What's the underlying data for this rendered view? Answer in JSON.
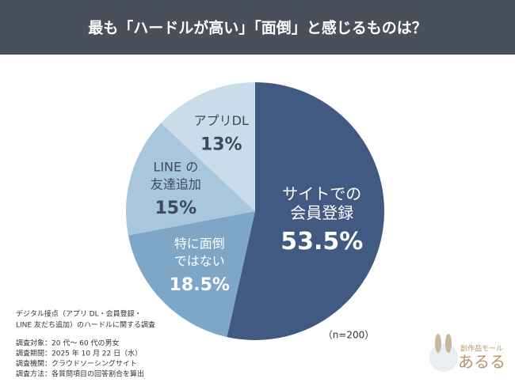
{
  "chart_data": {
    "type": "pie",
    "title": "最も「ハードルが高い」「面倒」と感じるものは？",
    "categories": [
      [
        "サイトでの",
        "会員登録"
      ],
      [
        "特に面倒",
        "ではない"
      ],
      [
        "LINE の",
        "友達追加"
      ],
      [
        "アプリDL"
      ]
    ],
    "values": [
      53.5,
      18.5,
      15,
      13
    ],
    "value_labels": [
      "53.5%",
      "18.5%",
      "15%",
      "13%"
    ],
    "colors": [
      "#415a82",
      "#7ea6c6",
      "#a9c7dc",
      "#c9dcea"
    ],
    "annotation": "（n=200）",
    "notes": [
      "デジタル接点（アプリ DL・会員登録・",
      "LINE 友だち追加）のハードルに関する調査",
      "調査対象：20 代〜 60 代の男女",
      "調査期間：2025 年 10 月 22 日（水）",
      "調査機関：クラウドソーシングサイト",
      "調査方法：各質問項目の回答割合を算出"
    ],
    "brand": {
      "tagline": "創作品モール",
      "name": "あるる"
    }
  }
}
